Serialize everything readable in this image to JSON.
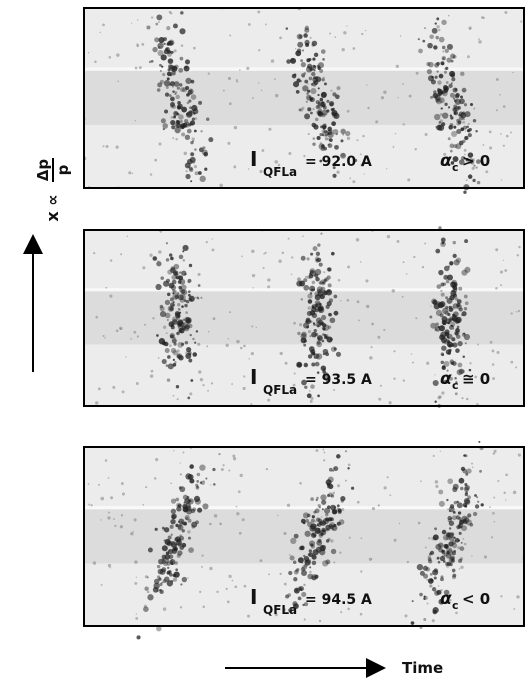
{
  "figure": {
    "y_axis": {
      "symbol": "x ∝",
      "numerator": "Δp",
      "denominator": "p"
    },
    "x_axis": {
      "label": "Time"
    },
    "panels": [
      {
        "current": "I",
        "current_sub": "QFLa",
        "current_value": "= 92.0 A",
        "alpha": "α",
        "alpha_sub": "c",
        "relation": "> 0"
      },
      {
        "current": "I",
        "current_sub": "QFLa",
        "current_value": "= 93.5 A",
        "alpha": "α",
        "alpha_sub": "c",
        "relation": "≅ 0"
      },
      {
        "current": "I",
        "current_sub": "QFLa",
        "current_value": "= 94.5 A",
        "alpha": "α",
        "alpha_sub": "c",
        "relation": "< 0"
      }
    ]
  }
}
